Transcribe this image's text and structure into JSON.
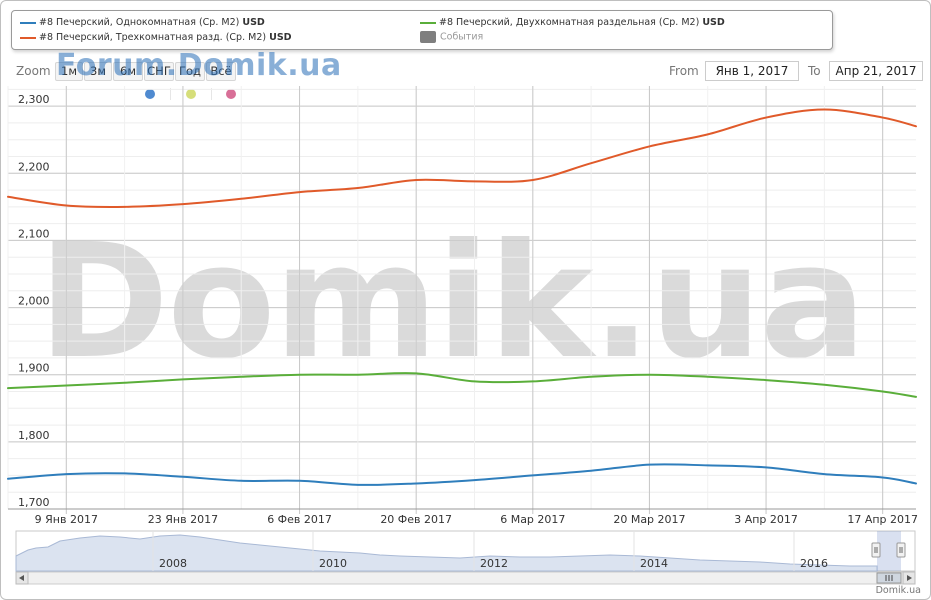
{
  "legend": {
    "series1": {
      "label": "#8 Печерский, Однокомнатная (Ср. М2)",
      "unit": "USD",
      "color": "#2f7ebc"
    },
    "series2": {
      "label": "#8 Печерский, Двухкомнатная раздельная (Ср. М2)",
      "unit": "USD",
      "color": "#5aae3a"
    },
    "series3": {
      "label": "#8 Печерский, Трехкомнатная разд. (Ср. М2)",
      "unit": "USD",
      "color": "#e05a2a"
    },
    "events": {
      "label": "События",
      "color": "#7f7f7f"
    }
  },
  "toolbar": {
    "zoom_label": "Zoom",
    "buttons": [
      "1м",
      "3м",
      "6м",
      "СНГ",
      "Год",
      "Всё"
    ],
    "watermark": "Forum.Domik.ua",
    "from_label": "From",
    "from_value": "Янв 1, 2017",
    "to_label": "To",
    "to_value": "Апр 21, 2017"
  },
  "event_markers": {
    "colors": [
      "#4f8ad0",
      "#d6de7a",
      "#d86f97"
    ]
  },
  "watermark": "Domik.ua",
  "footer": "Domik.ua",
  "chart_data": {
    "type": "line",
    "x_range": [
      "2017-01-02",
      "2017-04-21"
    ],
    "ylim": [
      1700,
      2330
    ],
    "y_ticks": [
      1700,
      1800,
      1900,
      2000,
      2100,
      2200,
      2300
    ],
    "y_tick_labels": [
      "1,700",
      "1,800",
      "1,900",
      "2,000",
      "2,100",
      "2,200",
      "2,300"
    ],
    "x_ticks": [
      "2017-01-09",
      "2017-01-23",
      "2017-02-06",
      "2017-02-20",
      "2017-03-06",
      "2017-03-20",
      "2017-04-03",
      "2017-04-17"
    ],
    "x_tick_labels": [
      "9 Янв 2017",
      "23 Янв 2017",
      "6 Фев 2017",
      "20 Фев 2017",
      "6 Мар 2017",
      "20 Мар 2017",
      "3 Апр 2017",
      "17 Апр 2017"
    ],
    "grid": true,
    "series": [
      {
        "name": "#8 Печерский, Трехкомнатная разд. (Ср. М2) USD",
        "color": "#e05a2a",
        "x": [
          "2017-01-02",
          "2017-01-09",
          "2017-01-16",
          "2017-01-23",
          "2017-01-30",
          "2017-02-06",
          "2017-02-13",
          "2017-02-20",
          "2017-02-27",
          "2017-03-06",
          "2017-03-13",
          "2017-03-20",
          "2017-03-27",
          "2017-04-03",
          "2017-04-10",
          "2017-04-17",
          "2017-04-21"
        ],
        "values": [
          2165,
          2152,
          2150,
          2154,
          2162,
          2172,
          2178,
          2190,
          2188,
          2190,
          2215,
          2240,
          2258,
          2283,
          2295,
          2283,
          2270
        ]
      },
      {
        "name": "#8 Печерский, Двухкомнатная раздельная (Ср. М2) USD",
        "color": "#5aae3a",
        "x": [
          "2017-01-02",
          "2017-01-09",
          "2017-01-16",
          "2017-01-23",
          "2017-01-30",
          "2017-02-06",
          "2017-02-13",
          "2017-02-20",
          "2017-02-27",
          "2017-03-06",
          "2017-03-13",
          "2017-03-20",
          "2017-03-27",
          "2017-04-03",
          "2017-04-10",
          "2017-04-17",
          "2017-04-21"
        ],
        "values": [
          1880,
          1884,
          1888,
          1893,
          1897,
          1900,
          1900,
          1902,
          1890,
          1890,
          1897,
          1900,
          1897,
          1892,
          1885,
          1875,
          1867
        ]
      },
      {
        "name": "#8 Печерский, Однокомнатная (Ср. М2) USD",
        "color": "#2f7ebc",
        "x": [
          "2017-01-02",
          "2017-01-09",
          "2017-01-16",
          "2017-01-23",
          "2017-01-30",
          "2017-02-06",
          "2017-02-13",
          "2017-02-20",
          "2017-02-27",
          "2017-03-06",
          "2017-03-13",
          "2017-03-20",
          "2017-03-27",
          "2017-04-03",
          "2017-04-10",
          "2017-04-17",
          "2017-04-21"
        ],
        "values": [
          1745,
          1752,
          1753,
          1748,
          1742,
          1742,
          1736,
          1738,
          1743,
          1750,
          1757,
          1766,
          1765,
          1762,
          1752,
          1747,
          1738
        ]
      }
    ],
    "navigator": {
      "x_tick_labels": [
        "2008",
        "2010",
        "2012",
        "2014",
        "2016"
      ]
    }
  }
}
